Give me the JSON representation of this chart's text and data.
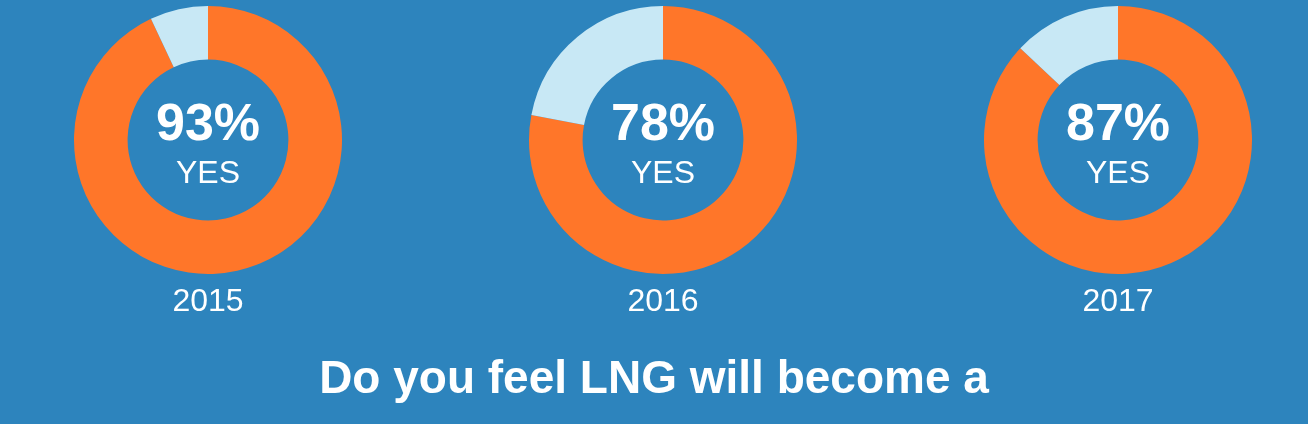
{
  "chart_data": [
    {
      "type": "donut",
      "title": "2015",
      "categories": [
        "YES",
        null
      ],
      "values": [
        93,
        7
      ],
      "colors": [
        "#ff7629",
        "#c8e8f5"
      ],
      "value_labels": [
        "93%",
        null
      ],
      "legend": false
    },
    {
      "type": "donut",
      "title": "2016",
      "categories": [
        "YES",
        null
      ],
      "values": [
        78,
        22
      ],
      "colors": [
        "#ff7629",
        "#c8e8f5"
      ],
      "value_labels": [
        "78%",
        null
      ],
      "legend": false
    },
    {
      "type": "donut",
      "title": "2017",
      "categories": [
        "YES",
        null
      ],
      "values": [
        87,
        13
      ],
      "colors": [
        "#ff7629",
        "#c8e8f5"
      ],
      "value_labels": [
        "87%",
        null
      ],
      "legend": false
    },
    {
      "type": "other",
      "title": "Do you feel LNG will become a"
    }
  ]
}
